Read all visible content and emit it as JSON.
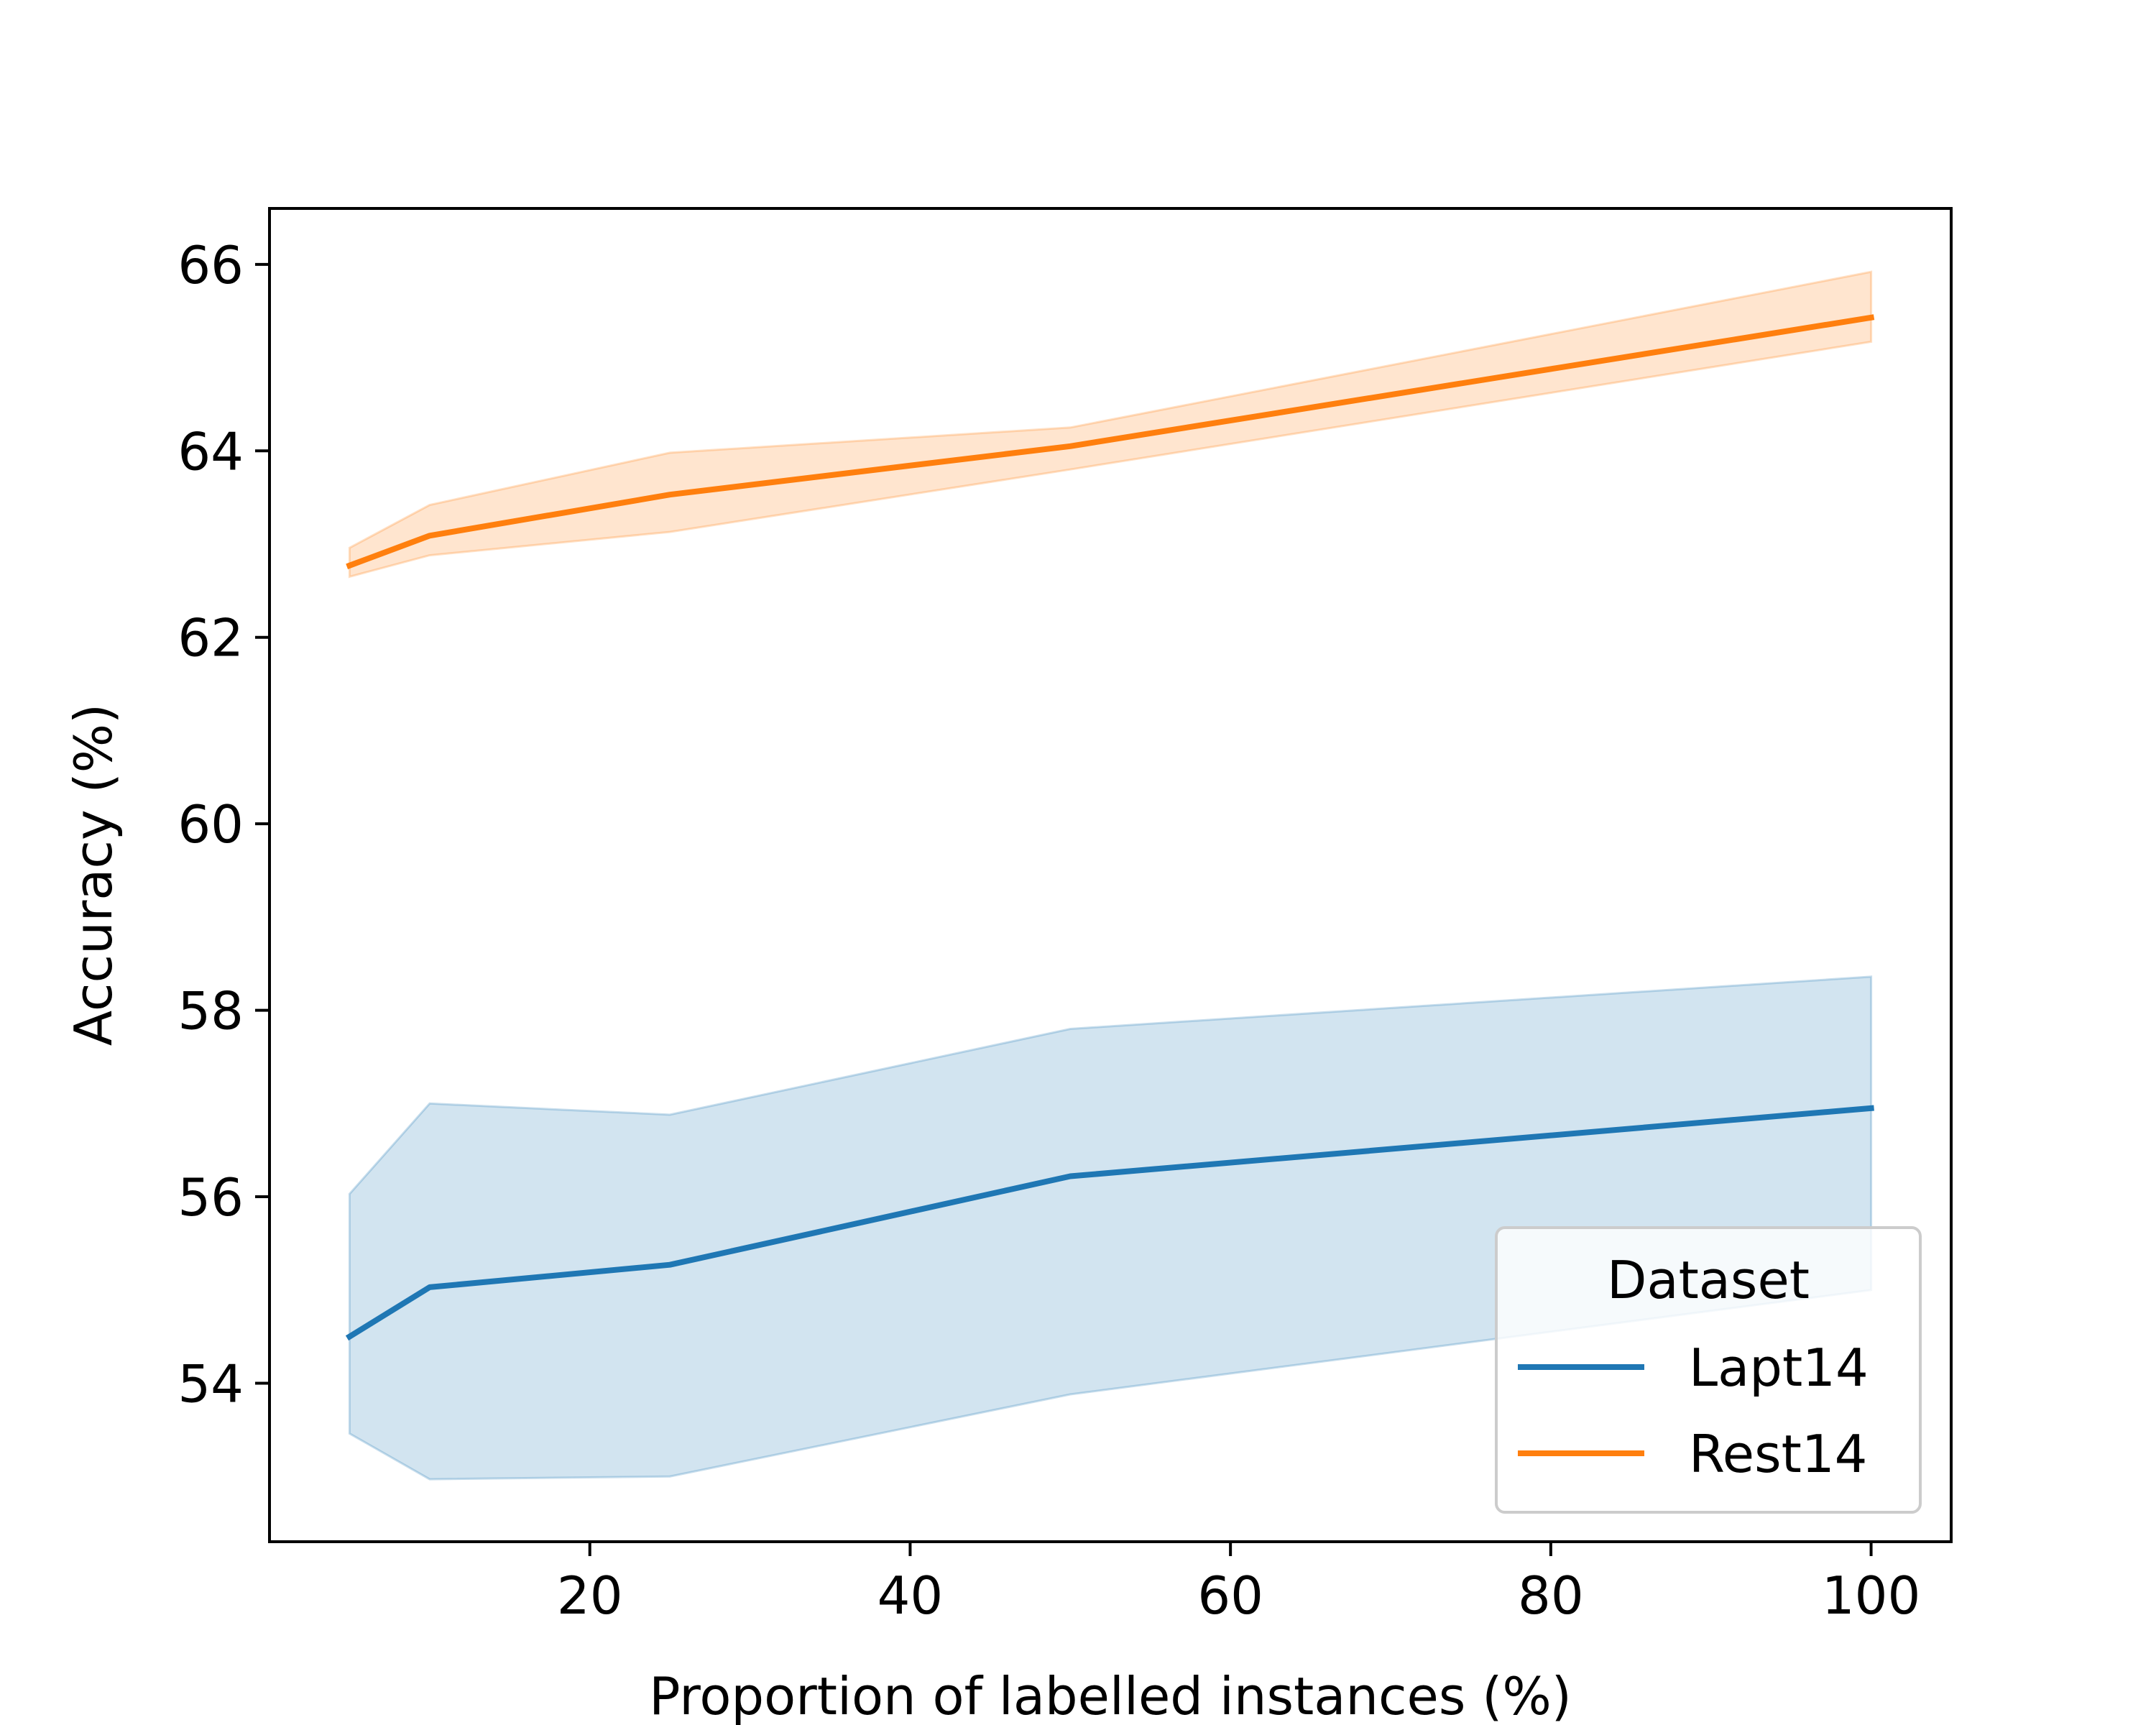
{
  "chart_data": {
    "type": "line",
    "title": "",
    "xlabel": "Proportion of labelled instances (%)",
    "ylabel": "Accuracy (%)",
    "xlim": [
      0,
      105
    ],
    "ylim": [
      52.3,
      66.6
    ],
    "xticks": [
      {
        "value": 20,
        "label": "20"
      },
      {
        "value": 40,
        "label": "40"
      },
      {
        "value": 60,
        "label": "60"
      },
      {
        "value": 80,
        "label": "80"
      },
      {
        "value": 100,
        "label": "100"
      }
    ],
    "yticks": [
      {
        "value": 54,
        "label": "54"
      },
      {
        "value": 56,
        "label": "56"
      },
      {
        "value": 58,
        "label": "58"
      },
      {
        "value": 60,
        "label": "60"
      },
      {
        "value": 62,
        "label": "62"
      },
      {
        "value": 64,
        "label": "64"
      },
      {
        "value": 66,
        "label": "66"
      }
    ],
    "grid": false,
    "legend": {
      "title": "Dataset",
      "position": "lower-right"
    },
    "series": [
      {
        "name": "Lapt14",
        "color": "#1f77b4",
        "x": [
          5,
          10,
          25,
          50,
          100
        ],
        "values": [
          54.5,
          55.03,
          55.27,
          56.22,
          56.95
        ],
        "band_upper": [
          56.03,
          57.0,
          56.88,
          57.8,
          58.36
        ],
        "band_lower": [
          53.46,
          52.97,
          53.0,
          53.88,
          55.0
        ]
      },
      {
        "name": "Rest14",
        "color": "#ff7f0e",
        "x": [
          5,
          10,
          25,
          50,
          100
        ],
        "values": [
          62.77,
          63.09,
          63.53,
          64.05,
          65.43
        ],
        "band_upper": [
          62.96,
          63.42,
          63.98,
          64.25,
          65.92
        ],
        "band_lower": [
          62.65,
          62.88,
          63.13,
          63.8,
          65.17
        ]
      }
    ]
  }
}
